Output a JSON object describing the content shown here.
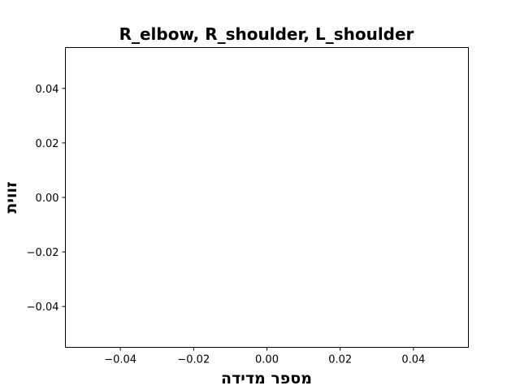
{
  "chart_data": {
    "type": "line",
    "title": "R_elbow, R_shoulder, L_shoulder",
    "xlabel": "מספר מדידה",
    "ylabel": "זווית",
    "xlim": [
      -0.055,
      0.055
    ],
    "ylim": [
      -0.055,
      0.055
    ],
    "x_ticks": [
      -0.04,
      -0.02,
      0.0,
      0.02,
      0.04
    ],
    "x_tick_labels": [
      "−0.04",
      "−0.02",
      "0.00",
      "0.02",
      "0.04"
    ],
    "y_ticks": [
      -0.04,
      -0.02,
      0.0,
      0.02,
      0.04
    ],
    "y_tick_labels": [
      "−0.04",
      "−0.02",
      "0.00",
      "0.02",
      "0.04"
    ],
    "grid": false,
    "legend": "none",
    "series": []
  }
}
